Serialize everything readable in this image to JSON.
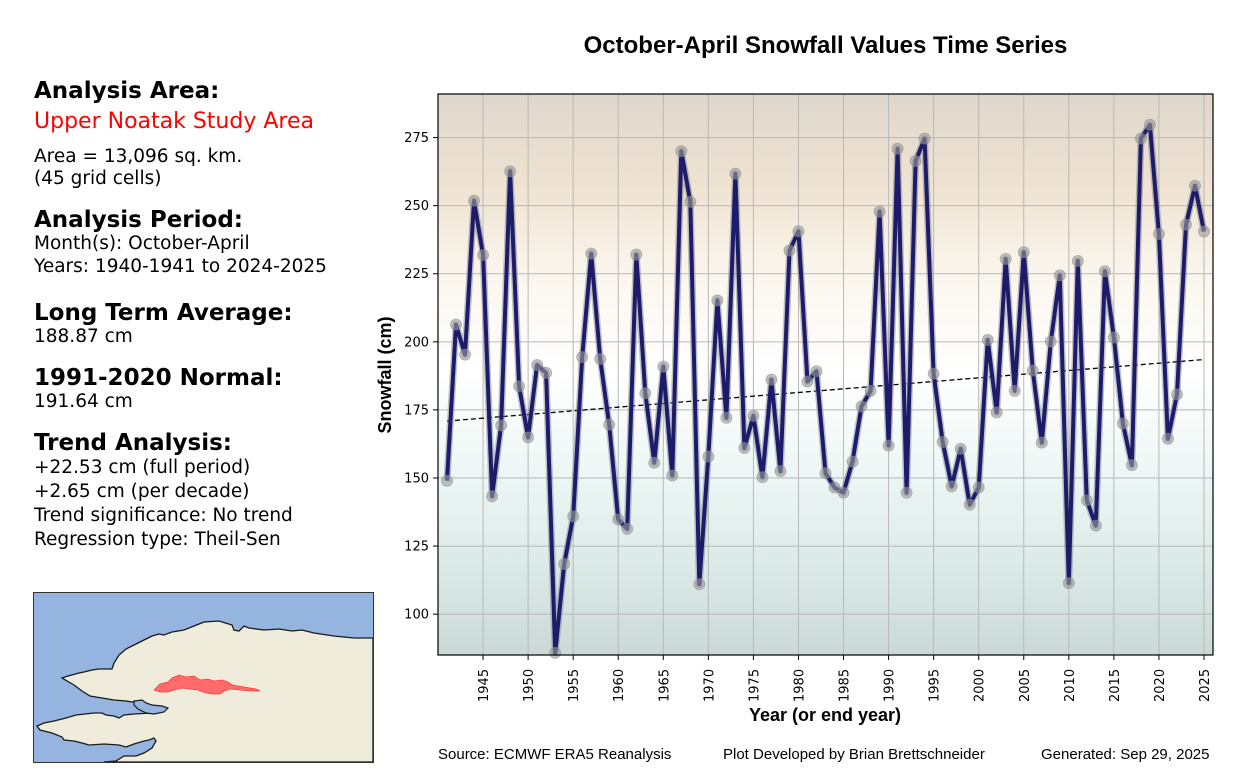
{
  "sidebar": {
    "analysis_area_heading": "Analysis Area:",
    "area_name": "Upper Noatak Study Area",
    "area_size": "Area = 13,096 sq. km.",
    "grid_cells": "(45 grid cells)",
    "analysis_period_heading": "Analysis Period:",
    "months": "Month(s): October-April",
    "years": "Years: 1940-1941 to 2024-2025",
    "long_term_avg_heading": "Long Term Average:",
    "long_term_avg_value": "188.87 cm",
    "normal_heading": "1991-2020 Normal:",
    "normal_value": "191.64 cm",
    "trend_heading": "Trend Analysis:",
    "trend_full": "+22.53 cm (full period)",
    "trend_decade": "+2.65 cm (per decade)",
    "trend_significance": "Trend significance: No trend",
    "regression_type": "Regression type: Theil-Sen"
  },
  "map": {
    "ocean_color": "#95b4e0",
    "land_color": "#efecdc",
    "study_area_color": "#ff6b6b"
  },
  "footer": {
    "source": "Source: ECMWF ERA5 Reanalysis",
    "developer": "Plot Developed by Brian Brettschneider",
    "generated": "Generated: Sep 29, 2025"
  },
  "chart_data": {
    "type": "line",
    "title": "October-April Snowfall Values Time Series",
    "xlabel": "Year (or end year)",
    "ylabel": "Snowfall (cm)",
    "xlim": [
      1940,
      2026
    ],
    "ylim": [
      85,
      291
    ],
    "grid": true,
    "line_color": "#1c1c6b",
    "marker_color": "#9a9a9a",
    "xticks": [
      1945,
      1950,
      1955,
      1960,
      1965,
      1970,
      1975,
      1980,
      1985,
      1990,
      1995,
      2000,
      2005,
      2010,
      2015,
      2020,
      2025
    ],
    "yticks": [
      100,
      125,
      150,
      175,
      200,
      225,
      250,
      275
    ],
    "x": [
      1941,
      1942,
      1943,
      1944,
      1945,
      1946,
      1947,
      1948,
      1949,
      1950,
      1951,
      1952,
      1953,
      1954,
      1955,
      1956,
      1957,
      1958,
      1959,
      1960,
      1961,
      1962,
      1963,
      1964,
      1965,
      1966,
      1967,
      1968,
      1969,
      1970,
      1971,
      1972,
      1973,
      1974,
      1975,
      1976,
      1977,
      1978,
      1979,
      1980,
      1981,
      1982,
      1983,
      1984,
      1985,
      1986,
      1987,
      1988,
      1989,
      1990,
      1991,
      1992,
      1993,
      1994,
      1995,
      1996,
      1997,
      1998,
      1999,
      2000,
      2001,
      2002,
      2003,
      2004,
      2005,
      2006,
      2007,
      2008,
      2009,
      2010,
      2011,
      2012,
      2013,
      2014,
      2015,
      2016,
      2017,
      2018,
      2019,
      2020,
      2021,
      2022,
      2023,
      2024,
      2025
    ],
    "series": [
      {
        "name": "Snowfall",
        "values": [
          149.0,
          206.3,
          195.3,
          251.8,
          231.9,
          143.3,
          169.3,
          262.6,
          183.7,
          164.9,
          191.5,
          188.6,
          85.8,
          118.4,
          135.9,
          194.4,
          232.4,
          193.7,
          169.6,
          134.8,
          131.3,
          232.0,
          181.1,
          155.6,
          190.9,
          150.9,
          270.0,
          251.4,
          111.0,
          157.9,
          215.2,
          172.1,
          261.7,
          161.0,
          172.8,
          150.3,
          186.1,
          152.5,
          233.5,
          240.6,
          185.4,
          189.2,
          151.8,
          146.5,
          144.6,
          156.0,
          176.3,
          182.0,
          247.8,
          161.9,
          270.9,
          144.6,
          266.4,
          274.6,
          188.3,
          163.2,
          146.9,
          160.7,
          140.2,
          146.5,
          200.7,
          174.1,
          230.4,
          182.0,
          232.9,
          189.4,
          163.0,
          200.1,
          224.4,
          111.4,
          229.7,
          141.8,
          132.5,
          225.9,
          201.6,
          170.0,
          154.7,
          274.6,
          279.7,
          239.6,
          164.4,
          180.7,
          243.0,
          257.3,
          240.5
        ]
      }
    ],
    "trend_line": {
      "name": "Theil-Sen trend",
      "style": "dashed",
      "x": [
        1941,
        2025
      ],
      "y": [
        170.9,
        193.5
      ]
    },
    "background_gradient": [
      "#dfd7cd",
      "#efe3d2",
      "#fbf7ef",
      "#ffffff",
      "#eef7f5",
      "#dcebe8",
      "#cbd9d6"
    ]
  }
}
